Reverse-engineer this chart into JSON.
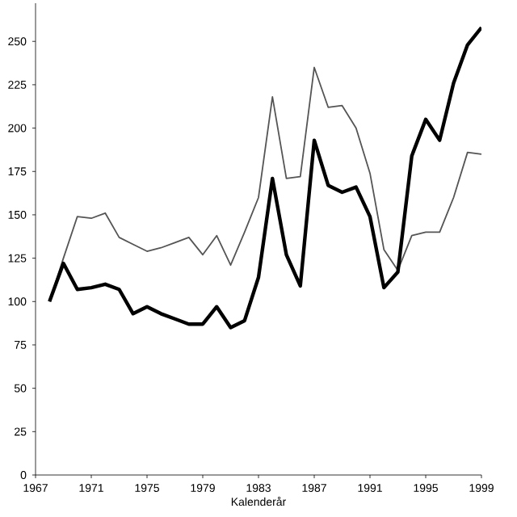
{
  "chart_data": {
    "type": "line",
    "xlabel": "Kalenderår",
    "x": [
      1968,
      1969,
      1970,
      1971,
      1972,
      1973,
      1974,
      1975,
      1976,
      1977,
      1978,
      1979,
      1980,
      1981,
      1982,
      1983,
      1984,
      1985,
      1986,
      1987,
      1988,
      1989,
      1990,
      1991,
      1992,
      1993,
      1994,
      1995,
      1996,
      1997,
      1998,
      1999
    ],
    "series": [
      {
        "color": "#555555",
        "values": [
          100,
          125,
          149,
          148,
          151,
          137,
          133,
          129,
          131,
          134,
          137,
          127,
          138,
          121,
          140,
          160,
          218,
          171,
          172,
          235,
          212,
          213,
          200,
          174,
          130,
          118,
          138,
          140,
          140,
          160,
          186,
          185
        ]
      },
      {
        "color": "#000000",
        "values": [
          100,
          122,
          107,
          108,
          110,
          107,
          93,
          97,
          93,
          90,
          87,
          87,
          97,
          85,
          89,
          114,
          171,
          127,
          109,
          193,
          167,
          163,
          166,
          149,
          108,
          117,
          184,
          205,
          193,
          226,
          248,
          258
        ]
      }
    ],
    "xlim": [
      1967,
      1999
    ],
    "ylim": [
      0,
      272
    ],
    "xticks": [
      1967,
      1971,
      1975,
      1979,
      1983,
      1987,
      1991,
      1995,
      1999
    ],
    "yticks": [
      0,
      25,
      50,
      75,
      100,
      125,
      150,
      175,
      200,
      225,
      250
    ],
    "grid": false,
    "marker": "none",
    "line_style": "solid"
  }
}
